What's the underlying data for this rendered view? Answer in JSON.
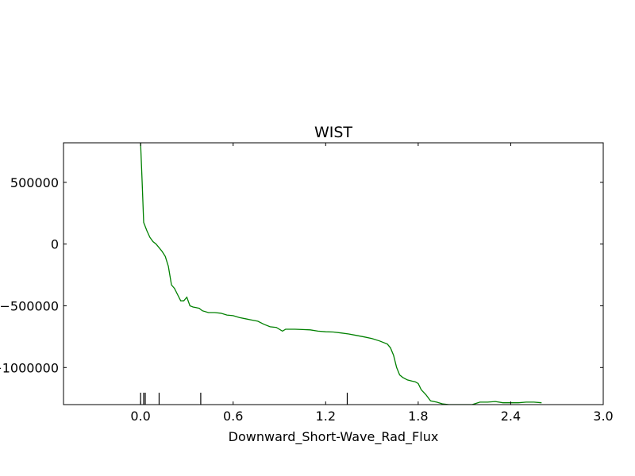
{
  "chart_data": {
    "type": "line",
    "title": "WIST",
    "xlabel": "Downward_Short-Wave_Rad_Flux",
    "ylabel": "",
    "xlim": [
      -0.5,
      3.0
    ],
    "ylim": [
      -1300000,
      820000
    ],
    "xticks": [
      0.0,
      0.6,
      1.2,
      1.8,
      2.4,
      3.0
    ],
    "xtick_labels": [
      "0.0",
      "0.6",
      "1.2",
      "1.8",
      "2.4",
      "3.0"
    ],
    "yticks": [
      500000,
      0,
      -500000,
      -1000000
    ],
    "ytick_labels": [
      "500000",
      "0",
      "−500000",
      "−1000000"
    ],
    "grid": false,
    "legend": "none",
    "series": [
      {
        "color": "#008000",
        "x": [
          0.0,
          0.01,
          0.02,
          0.04,
          0.06,
          0.08,
          0.1,
          0.12,
          0.14,
          0.16,
          0.18,
          0.2,
          0.22,
          0.24,
          0.26,
          0.28,
          0.3,
          0.32,
          0.34,
          0.36,
          0.38,
          0.4,
          0.44,
          0.48,
          0.52,
          0.56,
          0.6,
          0.64,
          0.68,
          0.72,
          0.76,
          0.8,
          0.84,
          0.88,
          0.92,
          0.94,
          0.96,
          1.0,
          1.05,
          1.1,
          1.15,
          1.2,
          1.25,
          1.3,
          1.35,
          1.4,
          1.45,
          1.5,
          1.55,
          1.6,
          1.62,
          1.64,
          1.66,
          1.68,
          1.7,
          1.73,
          1.76,
          1.78,
          1.8,
          1.82,
          1.85,
          1.88,
          1.92,
          1.96,
          2.0,
          2.05,
          2.1,
          2.15,
          2.2,
          2.25,
          2.3,
          2.35,
          2.4,
          2.45,
          2.5,
          2.55,
          2.6
        ],
        "y": [
          820000,
          500000,
          175000,
          110000,
          55000,
          20000,
          0,
          -30000,
          -60000,
          -100000,
          -180000,
          -330000,
          -360000,
          -410000,
          -460000,
          -460000,
          -430000,
          -500000,
          -510000,
          -515000,
          -520000,
          -540000,
          -555000,
          -555000,
          -560000,
          -575000,
          -580000,
          -595000,
          -605000,
          -615000,
          -625000,
          -650000,
          -670000,
          -675000,
          -705000,
          -690000,
          -690000,
          -690000,
          -692000,
          -695000,
          -705000,
          -710000,
          -712000,
          -720000,
          -728000,
          -740000,
          -752000,
          -765000,
          -785000,
          -810000,
          -840000,
          -900000,
          -1000000,
          -1060000,
          -1080000,
          -1100000,
          -1110000,
          -1115000,
          -1130000,
          -1180000,
          -1220000,
          -1270000,
          -1280000,
          -1295000,
          -1300000,
          -1300000,
          -1300000,
          -1300000,
          -1280000,
          -1280000,
          -1275000,
          -1285000,
          -1285000,
          -1285000,
          -1280000,
          -1280000,
          -1285000
        ]
      }
    ],
    "rug_x": [
      0.0,
      0.02,
      0.03,
      0.12,
      0.39,
      1.34
    ]
  }
}
